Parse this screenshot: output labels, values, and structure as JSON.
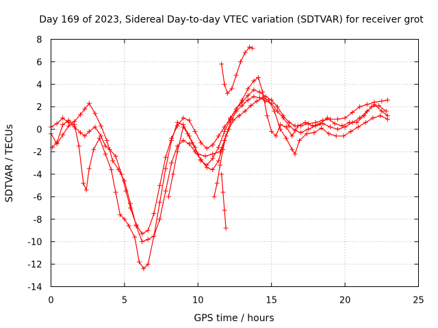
{
  "chart_data": {
    "type": "scatter",
    "title": "Day 169 of 2023, Sidereal Day-to-day VTEC variation (SDTVAR) for receiver grot",
    "xlabel": "GPS time / hours",
    "ylabel": "SDTVAR / TECUs",
    "xlim": [
      0,
      25
    ],
    "ylim": [
      -14,
      8
    ],
    "xticks": [
      0,
      5,
      10,
      15,
      20,
      25
    ],
    "yticks": [
      -14,
      -12,
      -10,
      -8,
      -6,
      -4,
      -2,
      0,
      2,
      4,
      6,
      8
    ],
    "grid": true,
    "legend": "none",
    "marker": "plus",
    "color": "#ff0000",
    "series": [
      {
        "values": [
          [
            0,
            0.2
          ],
          [
            0.4,
            0.5
          ],
          [
            0.8,
            1.0
          ],
          [
            1.2,
            0.6
          ],
          [
            1.6,
            0.2
          ],
          [
            2.0,
            -0.3
          ],
          [
            2.3,
            -0.6
          ],
          [
            2.6,
            -0.2
          ],
          [
            3.0,
            0.2
          ],
          [
            3.4,
            -0.6
          ],
          [
            3.7,
            -1.5
          ],
          [
            4.0,
            -1.8
          ],
          [
            4.4,
            -2.4
          ],
          [
            4.8,
            -4.0
          ],
          [
            5.1,
            -5.5
          ],
          [
            5.4,
            -7.0
          ],
          [
            5.8,
            -8.5
          ],
          [
            6.2,
            -9.3
          ],
          [
            6.6,
            -9.0
          ],
          [
            7.0,
            -7.5
          ],
          [
            7.4,
            -5.0
          ],
          [
            7.8,
            -2.5
          ],
          [
            8.2,
            -0.8
          ],
          [
            8.6,
            0.3
          ],
          [
            9.0,
            1.0
          ],
          [
            9.4,
            0.8
          ],
          [
            9.8,
            -0.2
          ],
          [
            10.2,
            -1.2
          ],
          [
            10.6,
            -1.7
          ],
          [
            11.0,
            -1.4
          ],
          [
            11.4,
            -0.6
          ],
          [
            11.8,
            0.2
          ],
          [
            12.2,
            1.0
          ],
          [
            12.6,
            1.8
          ],
          [
            13.0,
            2.4
          ],
          [
            13.4,
            3.0
          ],
          [
            13.8,
            3.5
          ],
          [
            14.2,
            3.3
          ],
          [
            14.6,
            2.9
          ],
          [
            15.0,
            2.6
          ],
          [
            15.4,
            2.0
          ],
          [
            15.8,
            1.2
          ],
          [
            16.2,
            0.6
          ],
          [
            16.6,
            0.3
          ],
          [
            17.0,
            0.3
          ],
          [
            17.5,
            0.5
          ],
          [
            18.0,
            0.6
          ],
          [
            18.5,
            0.8
          ],
          [
            19.0,
            0.9
          ],
          [
            19.5,
            0.9
          ],
          [
            20.0,
            1.0
          ],
          [
            20.5,
            1.5
          ],
          [
            21.0,
            2.0
          ],
          [
            21.5,
            2.2
          ],
          [
            22.0,
            2.4
          ],
          [
            22.5,
            2.5
          ],
          [
            22.9,
            2.6
          ]
        ]
      },
      {
        "values": [
          [
            0,
            -0.4
          ],
          [
            0.4,
            -1.3
          ],
          [
            0.8,
            -0.5
          ],
          [
            1.2,
            0.3
          ],
          [
            1.6,
            0.7
          ],
          [
            2.0,
            1.3
          ],
          [
            2.3,
            1.8
          ],
          [
            2.6,
            2.3
          ],
          [
            3.0,
            1.4
          ],
          [
            3.4,
            0.3
          ],
          [
            3.8,
            -1.0
          ],
          [
            4.2,
            -2.8
          ],
          [
            4.6,
            -3.6
          ],
          [
            5.0,
            -4.6
          ],
          [
            5.4,
            -6.6
          ],
          [
            5.8,
            -8.6
          ],
          [
            6.2,
            -10.0
          ],
          [
            6.6,
            -9.8
          ],
          [
            7.0,
            -9.5
          ],
          [
            7.4,
            -8.0
          ],
          [
            7.8,
            -5.5
          ],
          [
            8.2,
            -3.0
          ],
          [
            8.6,
            -1.5
          ],
          [
            9.0,
            -1.0
          ],
          [
            9.4,
            -1.3
          ],
          [
            9.8,
            -2.0
          ],
          [
            10.2,
            -2.7
          ],
          [
            10.6,
            -3.4
          ],
          [
            11.0,
            -3.6
          ],
          [
            11.4,
            -2.8
          ],
          [
            11.8,
            -1.0
          ],
          [
            12.2,
            0.6
          ],
          [
            12.6,
            1.6
          ],
          [
            13.0,
            2.1
          ],
          [
            13.4,
            2.6
          ],
          [
            13.8,
            2.9
          ],
          [
            14.2,
            2.8
          ],
          [
            14.6,
            2.5
          ],
          [
            15.0,
            2.3
          ],
          [
            15.4,
            1.6
          ],
          [
            15.8,
            1.0
          ],
          [
            16.2,
            0.3
          ],
          [
            16.6,
            -0.1
          ],
          [
            17.0,
            -0.3
          ],
          [
            17.5,
            0.0
          ],
          [
            18.0,
            0.3
          ],
          [
            18.5,
            0.5
          ],
          [
            19.0,
            0.2
          ],
          [
            19.5,
            0.0
          ],
          [
            20.0,
            0.2
          ],
          [
            20.5,
            0.6
          ],
          [
            21.0,
            1.0
          ],
          [
            21.5,
            1.6
          ],
          [
            22.0,
            2.2
          ],
          [
            22.5,
            1.6
          ],
          [
            22.9,
            1.2
          ]
        ]
      },
      {
        "values": [
          [
            0.1,
            -1.6
          ],
          [
            0.4,
            -1.2
          ],
          [
            0.8,
            0.4
          ],
          [
            1.2,
            0.8
          ],
          [
            1.6,
            0.4
          ],
          [
            1.9,
            -1.5
          ],
          [
            2.2,
            -4.8
          ],
          [
            2.4,
            -5.4
          ],
          [
            2.6,
            -3.5
          ],
          [
            2.9,
            -1.8
          ],
          [
            3.3,
            -0.8
          ],
          [
            3.7,
            -2.2
          ],
          [
            4.1,
            -3.6
          ],
          [
            4.4,
            -5.6
          ],
          [
            4.7,
            -7.6
          ],
          [
            5.0,
            -8.0
          ],
          [
            5.3,
            -8.6
          ],
          [
            5.7,
            -9.6
          ],
          [
            6.0,
            -11.8
          ],
          [
            6.3,
            -12.4
          ],
          [
            6.6,
            -12.0
          ],
          [
            7.0,
            -9.5
          ],
          [
            7.4,
            -6.5
          ],
          [
            7.8,
            -3.5
          ],
          [
            8.2,
            -1.0
          ],
          [
            8.6,
            0.6
          ],
          [
            9.0,
            0.4
          ],
          [
            9.4,
            -0.6
          ],
          [
            9.8,
            -1.6
          ],
          [
            10.2,
            -2.8
          ],
          [
            10.6,
            -3.2
          ],
          [
            11.0,
            -2.6
          ],
          [
            11.4,
            -1.6
          ],
          [
            11.8,
            -0.2
          ],
          [
            12.2,
            0.9
          ],
          [
            12.6,
            1.8
          ],
          [
            13.0,
            2.6
          ],
          [
            13.4,
            3.6
          ],
          [
            13.8,
            4.3
          ],
          [
            14.1,
            4.6
          ],
          [
            14.4,
            3.3
          ],
          [
            14.7,
            1.2
          ],
          [
            15.0,
            -0.2
          ],
          [
            15.3,
            -0.6
          ],
          [
            15.6,
            0.4
          ],
          [
            16.0,
            0.2
          ],
          [
            16.4,
            -0.6
          ],
          [
            16.8,
            0.3
          ],
          [
            17.3,
            0.6
          ],
          [
            17.8,
            0.3
          ],
          [
            18.3,
            0.5
          ],
          [
            18.8,
            1.0
          ],
          [
            19.3,
            0.5
          ],
          [
            19.8,
            0.3
          ],
          [
            20.3,
            0.6
          ],
          [
            20.8,
            0.6
          ],
          [
            21.3,
            1.2
          ],
          [
            21.8,
            2.0
          ],
          [
            22.3,
            2.1
          ],
          [
            22.8,
            1.6
          ]
        ]
      },
      {
        "values": [
          [
            8.0,
            -6.0
          ],
          [
            8.3,
            -4.0
          ],
          [
            8.6,
            -2.0
          ],
          [
            9.0,
            0.2
          ],
          [
            9.3,
            -0.4
          ],
          [
            9.6,
            -1.2
          ],
          [
            10.0,
            -2.2
          ],
          [
            10.5,
            -2.4
          ],
          [
            11.0,
            -2.2
          ],
          [
            11.5,
            -2.0
          ],
          [
            11.8,
            -1.0
          ],
          [
            12.1,
            0.0
          ],
          [
            12.4,
            0.8
          ],
          [
            12.8,
            1.2
          ],
          [
            13.2,
            1.6
          ],
          [
            13.6,
            2.1
          ],
          [
            14.0,
            2.5
          ],
          [
            14.4,
            2.8
          ],
          [
            14.8,
            2.6
          ],
          [
            15.2,
            1.6
          ],
          [
            15.6,
            0.0
          ],
          [
            16.0,
            -0.8
          ],
          [
            16.4,
            -1.8
          ],
          [
            16.6,
            -2.2
          ],
          [
            16.9,
            -1.0
          ],
          [
            17.4,
            -0.4
          ],
          [
            17.9,
            -0.3
          ],
          [
            18.4,
            0.1
          ],
          [
            18.9,
            -0.4
          ],
          [
            19.4,
            -0.6
          ],
          [
            19.9,
            -0.6
          ],
          [
            20.4,
            -0.2
          ],
          [
            20.9,
            0.2
          ],
          [
            21.4,
            0.6
          ],
          [
            21.9,
            1.0
          ],
          [
            22.4,
            1.2
          ],
          [
            22.9,
            0.9
          ]
        ]
      },
      {
        "values": [
          [
            11.1,
            -6.0
          ],
          [
            11.3,
            -4.8
          ],
          [
            11.5,
            -3.2
          ],
          [
            11.7,
            -1.8
          ],
          [
            11.9,
            -0.6
          ]
        ]
      },
      {
        "values": [
          [
            11.6,
            5.8
          ],
          [
            11.8,
            4.0
          ],
          [
            12.0,
            3.2
          ],
          [
            12.3,
            3.6
          ],
          [
            12.6,
            4.8
          ],
          [
            12.9,
            6.0
          ],
          [
            13.2,
            6.8
          ],
          [
            13.5,
            7.3
          ],
          [
            13.7,
            7.2
          ]
        ]
      },
      {
        "values": [
          [
            11.6,
            -4.0
          ],
          [
            11.7,
            -5.6
          ],
          [
            11.8,
            -7.2
          ],
          [
            11.9,
            -8.8
          ]
        ]
      }
    ]
  }
}
